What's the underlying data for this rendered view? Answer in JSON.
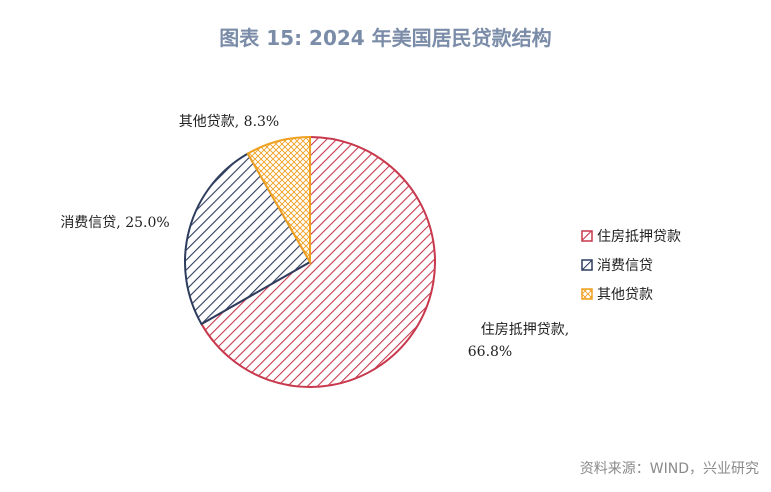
{
  "title": "图表 15: 2024 年美国居民贷款结构",
  "source": "资料来源：WIND，兴业研究",
  "chart_data": {
    "type": "pie",
    "title": "图表 15: 2024 年美国居民贷款结构",
    "slices": [
      {
        "name": "住房抵押贷款",
        "value": 66.8,
        "label": "住房抵押贷款, 66.8%",
        "color": "#c8394d",
        "pattern": "diag-lines"
      },
      {
        "name": "消费信贷",
        "value": 25.0,
        "label": "消费信贷, 25.0%",
        "color": "#2e3c5e",
        "pattern": "diag-lines"
      },
      {
        "name": "其他贷款",
        "value": 8.3,
        "label": "其他贷款, 8.3%",
        "color": "#f0a020",
        "pattern": "crosshatch"
      }
    ],
    "legend": {
      "position": "right",
      "entries": [
        "住房抵押贷款",
        "消费信贷",
        "其他贷款"
      ]
    }
  }
}
